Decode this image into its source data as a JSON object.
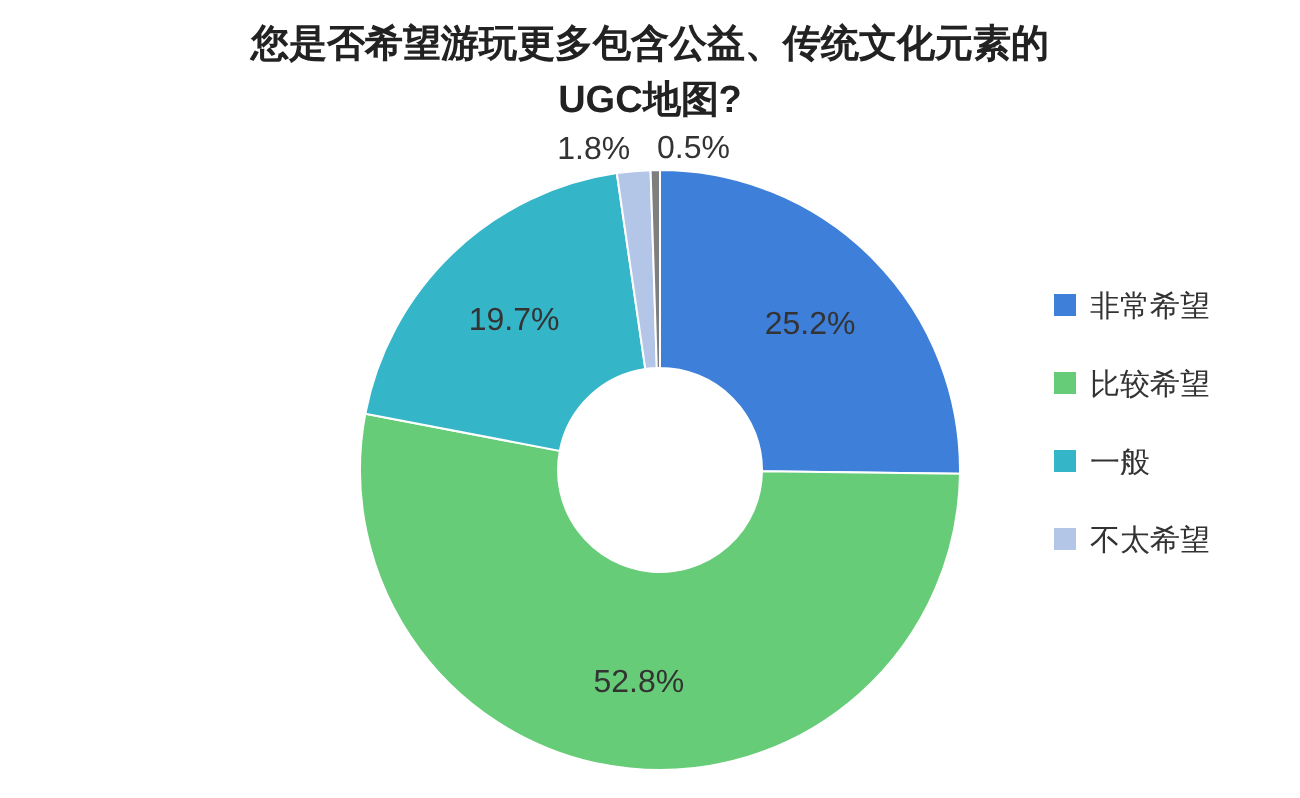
{
  "chart_data": {
    "type": "donut",
    "title": "您是否希望游玩更多包含公益、传统文化元素的UGC地图?",
    "categories": [
      "非常希望",
      "比较希望",
      "一般",
      "不太希望",
      null
    ],
    "values": [
      25.2,
      52.8,
      19.7,
      1.8,
      0.5
    ],
    "colors": [
      "#3d7fd9",
      "#66cc77",
      "#35b5c8",
      "#b4c6e7",
      "#7f7f7f"
    ],
    "value_labels": [
      "25.2%",
      "52.8%",
      "19.7%",
      "1.8%",
      "0.5%"
    ],
    "legend": "right"
  }
}
